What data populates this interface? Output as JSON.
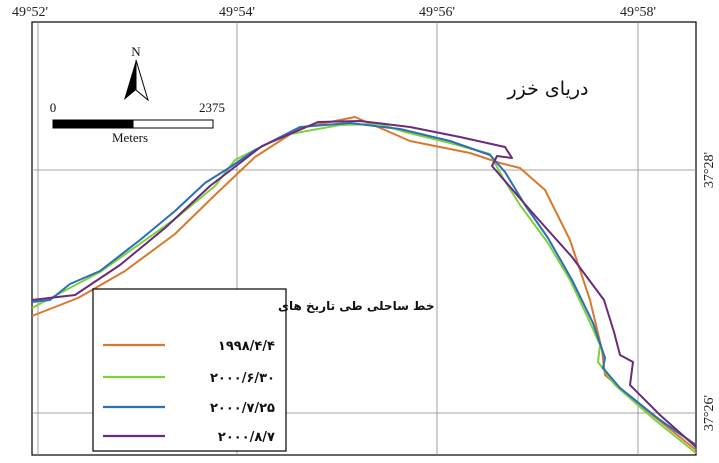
{
  "map": {
    "sea_label": "دریای خزر",
    "longitude_labels": [
      "49°52'",
      "49°54'",
      "49°56'",
      "49°58'"
    ],
    "latitude_labels": [
      "37°28'",
      "37°26'"
    ],
    "north_arrow": {
      "label": "N",
      "icon": "north-arrow-icon"
    },
    "scale_bar": {
      "start_label": "0",
      "end_label": "2375",
      "unit_label": "Meters"
    },
    "legend": {
      "title": "خط ساحلی طی تاریخ های",
      "entries": [
        {
          "label": "۱۹۹۸/۴/۴",
          "color": "#d9792f"
        },
        {
          "label": "۲۰۰۰/۶/۳۰",
          "color": "#7fd13b"
        },
        {
          "label": "۲۰۰۰/۷/۲۵",
          "color": "#2b6fb6"
        },
        {
          "label": "۲۰۰۰/۸/۷",
          "color": "#6b2b7a"
        }
      ]
    }
  }
}
